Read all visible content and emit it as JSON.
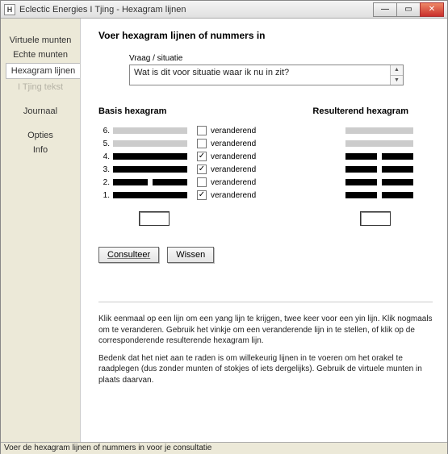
{
  "window": {
    "title": "Eclectic Energies I Tjing - Hexagram lijnen",
    "icon_letter": "H"
  },
  "sidebar": {
    "items": [
      {
        "label": "Virtuele munten",
        "selected": false,
        "disabled": false
      },
      {
        "label": "Echte munten",
        "selected": false,
        "disabled": false
      },
      {
        "label": "Hexagram lijnen",
        "selected": true,
        "disabled": false
      },
      {
        "label": "I Tjing tekst",
        "selected": false,
        "disabled": true
      }
    ],
    "items2": [
      {
        "label": "Journaal"
      }
    ],
    "items3": [
      {
        "label": "Opties"
      },
      {
        "label": "Info"
      }
    ]
  },
  "main": {
    "title": "Voer hexagram lijnen of nummers in",
    "vraag_label": "Vraag / situatie",
    "vraag_value": "Wat is dit voor situatie waar ik nu in zit?",
    "basis_title": "Basis hexagram",
    "result_title": "Resulterend hexagram",
    "line_numbers": [
      "6.",
      "5.",
      "4.",
      "3.",
      "2.",
      "1."
    ],
    "basis_lines": [
      "empty",
      "empty",
      "yang",
      "yang",
      "yin",
      "yang"
    ],
    "changing_label": "veranderend",
    "changing": [
      false,
      false,
      true,
      true,
      false,
      true
    ],
    "result_lines": [
      "empty",
      "empty",
      "yin",
      "yin",
      "yin",
      "yin"
    ],
    "buttons": {
      "consult": "Consulteer",
      "clear": "Wissen"
    },
    "help1": "Klik eenmaal op een lijn om een yang lijn te krijgen, twee keer voor een yin lijn. Klik nogmaals om te veranderen. Gebruik het vinkje om een veranderende lijn in te stellen, of klik op de corresponderende resulterende hexagram lijn.",
    "help2": "Bedenk dat het niet aan te raden is om willekeurig lijnen in te voeren om het orakel te raadplegen (dus zonder munten of stokjes of iets dergelijks). Gebruik de virtuele munten in plaats daarvan."
  },
  "statusbar": "Voer de hexagram lijnen of nummers in voor je consultatie",
  "colors": {
    "chrome_bg": "#ece9d8",
    "line_solid": "#000000",
    "line_empty": "#cccccc",
    "close_btn": "#c9302c"
  }
}
